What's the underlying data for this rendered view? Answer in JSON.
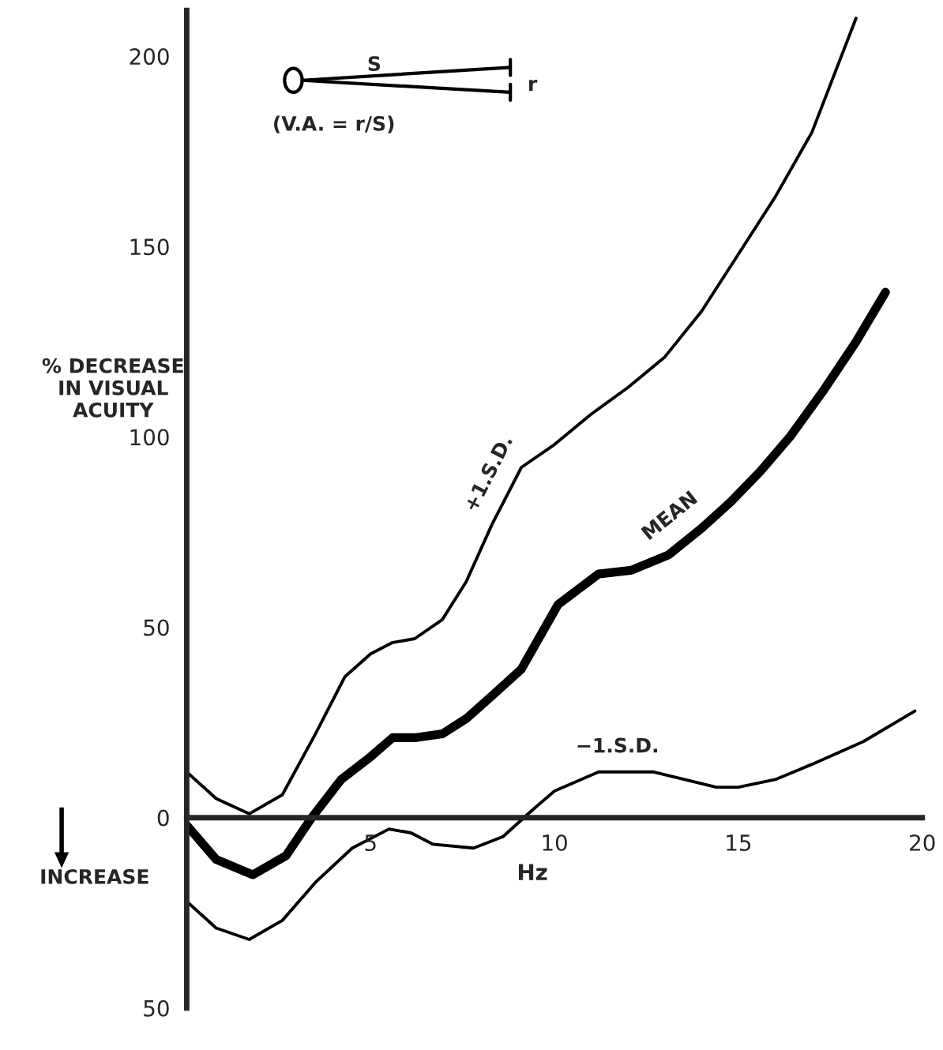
{
  "chart_data": {
    "type": "line",
    "xlabel": "Hz",
    "ylabel": "% DECREASE\nIN VISUAL\nACUITY",
    "annotations": [
      "INCREASE",
      "S",
      "r",
      "(V.A. = r/S)"
    ],
    "xlim": [
      0,
      20
    ],
    "ylim": [
      -50,
      212
    ],
    "xticks": [
      5,
      10,
      15,
      20
    ],
    "yticks": [
      {
        "value": -50,
        "label": "50"
      },
      0,
      50,
      100,
      150,
      200
    ],
    "grid": false,
    "legend": false,
    "marker": "none",
    "line_style": "solid",
    "series": [
      {
        "name": "+1.S.D.",
        "color": "#000000",
        "x": [
          0,
          0.8,
          1.7,
          2.6,
          3.5,
          4.3,
          5,
          5.6,
          6.2,
          6.95,
          7.6,
          8.3,
          9.1,
          10,
          11,
          12,
          13,
          14,
          15,
          16,
          17,
          18.2
        ],
        "values": [
          12,
          5,
          1,
          6,
          22,
          37,
          43,
          46,
          47,
          52,
          62,
          77,
          92,
          98,
          106,
          113,
          121,
          133,
          148,
          163,
          180,
          210
        ]
      },
      {
        "name": "MEAN",
        "color": "#000000",
        "x": [
          0,
          0.8,
          1.8,
          2.7,
          3.4,
          4.2,
          5,
          5.6,
          6.2,
          6.95,
          7.6,
          8.3,
          9.1,
          10.1,
          11.2,
          12.1,
          13.1,
          14,
          14.8,
          15.6,
          16.4,
          17.3,
          18.2,
          19
        ],
        "values": [
          -2,
          -11,
          -15,
          -10,
          0,
          10,
          16,
          21,
          21,
          22,
          26,
          32,
          39,
          56,
          64,
          65,
          69,
          76,
          83,
          91,
          100,
          112,
          125,
          138
        ]
      },
      {
        "name": "−1.S.D.",
        "color": "#000000",
        "x": [
          0,
          0.8,
          1.7,
          2.6,
          3.5,
          4.5,
          5.5,
          6.1,
          6.7,
          7.8,
          8.6,
          9.4,
          10,
          11.2,
          12.7,
          14.4,
          15,
          16,
          17,
          18.4,
          19.8
        ],
        "values": [
          -22,
          -29,
          -32,
          -27,
          -17,
          -8,
          -3,
          -4,
          -7,
          -8,
          -5,
          2,
          7,
          12,
          12,
          8,
          8,
          10,
          14,
          20,
          28
        ]
      }
    ]
  }
}
